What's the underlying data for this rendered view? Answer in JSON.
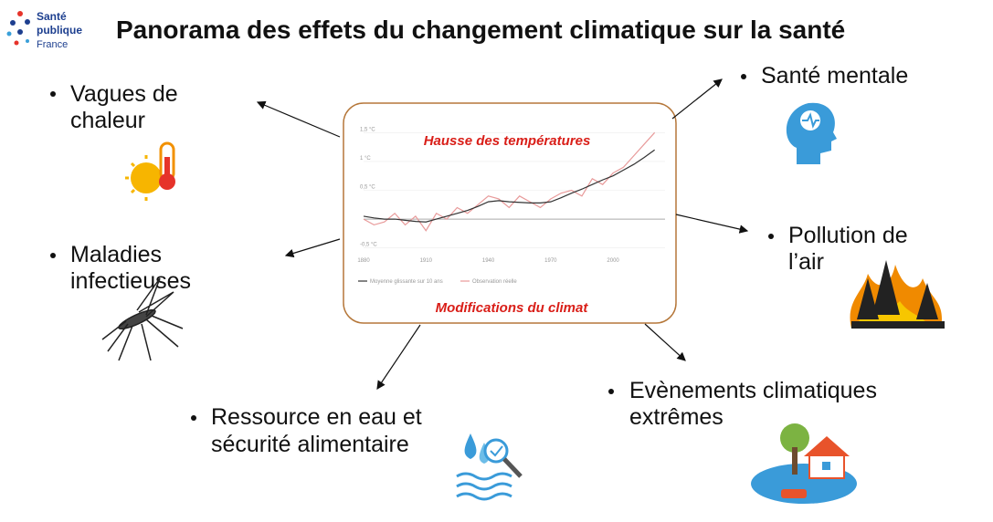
{
  "header": {
    "logo": [
      "Santé",
      "publique",
      "France"
    ],
    "title": "Panorama des effets du changement climatique sur la santé"
  },
  "center": {
    "top_label": "Hausse des températures",
    "bottom_label": "Modifications du climat",
    "chart": {
      "type": "line",
      "x": [
        1880,
        1885,
        1890,
        1895,
        1900,
        1905,
        1910,
        1915,
        1920,
        1925,
        1930,
        1935,
        1940,
        1945,
        1950,
        1955,
        1960,
        1965,
        1970,
        1975,
        1980,
        1985,
        1990,
        1995,
        2000,
        2005,
        2010,
        2015,
        2020
      ],
      "series": [
        {
          "name": "Moyenne glissante sur 10 ans",
          "color": "#333333",
          "values": [
            0.05,
            0.02,
            0.0,
            0.0,
            -0.02,
            -0.04,
            -0.05,
            0.0,
            0.05,
            0.1,
            0.15,
            0.22,
            0.3,
            0.32,
            0.3,
            0.29,
            0.28,
            0.28,
            0.3,
            0.37,
            0.45,
            0.52,
            0.6,
            0.68,
            0.75,
            0.85,
            0.95,
            1.07,
            1.2
          ]
        },
        {
          "name": "Observation réelle",
          "color": "#e89a9a",
          "values": [
            0.0,
            -0.1,
            -0.05,
            0.1,
            -0.1,
            0.05,
            -0.2,
            0.1,
            0.0,
            0.2,
            0.1,
            0.25,
            0.4,
            0.35,
            0.2,
            0.4,
            0.3,
            0.2,
            0.35,
            0.45,
            0.5,
            0.4,
            0.7,
            0.6,
            0.8,
            0.9,
            1.1,
            1.3,
            1.5
          ]
        }
      ],
      "xlim": [
        1880,
        2025
      ],
      "ylim": [
        -0.6,
        1.6
      ],
      "xticks": [
        1880,
        1910,
        1940,
        1970,
        2000
      ],
      "yticks": [
        {
          "value": 1.5,
          "label": "1,5 °C"
        },
        {
          "value": 1,
          "label": "1 °C"
        },
        {
          "value": 0.5,
          "label": "0,5 °C"
        },
        {
          "value": -0.5,
          "label": "-0,5 °C"
        }
      ]
    }
  },
  "effects": [
    {
      "lines": [
        "Vagues de",
        "chaleur"
      ]
    },
    {
      "lines": [
        "Maladies",
        "infectieuses"
      ]
    },
    {
      "lines": [
        "Ressource en eau et",
        "sécurité alimentaire"
      ]
    },
    {
      "lines": [
        "Santé mentale"
      ]
    },
    {
      "lines": [
        "Pollution de",
        "l’air"
      ]
    },
    {
      "lines": [
        "Evènements climatiques",
        "extrêmes"
      ]
    }
  ]
}
